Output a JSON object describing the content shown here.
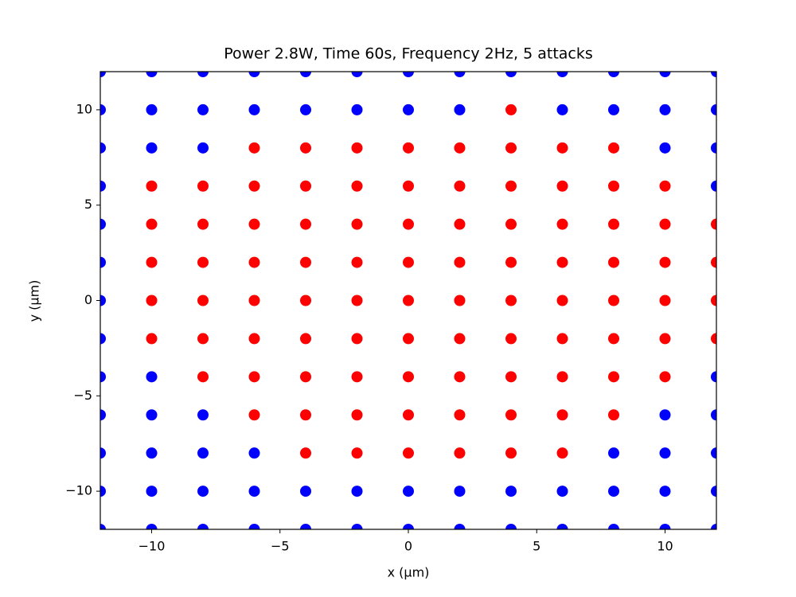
{
  "chart_data": {
    "type": "scatter",
    "title": "Power 2.8W, Time 60s, Frequency 2Hz, 5 attacks",
    "x_label": "x (µm)",
    "y_label": "y (µm)",
    "xlim": [
      -12,
      12
    ],
    "ylim": [
      -12,
      12
    ],
    "xticks": [
      {
        "value": -10,
        "label": "−10"
      },
      {
        "value": -5,
        "label": "−5"
      },
      0,
      5,
      10
    ],
    "yticks": [
      {
        "value": -10,
        "label": "−10"
      },
      {
        "value": -5,
        "label": "−5"
      },
      0,
      5,
      10
    ],
    "series": [
      {
        "color": "#ff0000",
        "x": [
          4,
          -6,
          -4,
          -2,
          0,
          2,
          4,
          6,
          8,
          -10,
          -8,
          -6,
          -4,
          -2,
          0,
          2,
          4,
          6,
          8,
          10,
          -10,
          -8,
          -6,
          -4,
          -2,
          0,
          2,
          4,
          6,
          8,
          10,
          12,
          -10,
          -8,
          -6,
          -4,
          -2,
          0,
          2,
          4,
          6,
          8,
          10,
          12,
          -10,
          -8,
          -6,
          -4,
          -2,
          0,
          2,
          4,
          6,
          8,
          10,
          12,
          -10,
          -8,
          -6,
          -4,
          -2,
          0,
          2,
          4,
          6,
          8,
          10,
          12,
          -8,
          -6,
          -4,
          -2,
          0,
          2,
          4,
          6,
          8,
          10,
          -6,
          -4,
          -2,
          0,
          2,
          4,
          6,
          8,
          -4,
          -2,
          0,
          2,
          4,
          6
        ],
        "y": [
          10,
          8,
          8,
          8,
          8,
          8,
          8,
          8,
          8,
          6,
          6,
          6,
          6,
          6,
          6,
          6,
          6,
          6,
          6,
          6,
          4,
          4,
          4,
          4,
          4,
          4,
          4,
          4,
          4,
          4,
          4,
          4,
          2,
          2,
          2,
          2,
          2,
          2,
          2,
          2,
          2,
          2,
          2,
          2,
          0,
          0,
          0,
          0,
          0,
          0,
          0,
          0,
          0,
          0,
          0,
          0,
          -2,
          -2,
          -2,
          -2,
          -2,
          -2,
          -2,
          -2,
          -2,
          -2,
          -2,
          -2,
          -4,
          -4,
          -4,
          -4,
          -4,
          -4,
          -4,
          -4,
          -4,
          -4,
          -6,
          -6,
          -6,
          -6,
          -6,
          -6,
          -6,
          -6,
          -8,
          -8,
          -8,
          -8,
          -8,
          -8
        ]
      },
      {
        "color": "#0000ff",
        "x": [
          -12,
          -10,
          -8,
          -6,
          -4,
          -2,
          0,
          2,
          4,
          6,
          8,
          10,
          12,
          -12,
          -10,
          -8,
          -6,
          -4,
          -2,
          0,
          2,
          6,
          8,
          10,
          12,
          -12,
          -10,
          -8,
          10,
          12,
          -12,
          12,
          -12,
          -12,
          -12,
          -12,
          -12,
          -10,
          12,
          -12,
          -10,
          -8,
          10,
          12,
          -12,
          -10,
          -8,
          -6,
          8,
          10,
          12,
          -12,
          -10,
          -8,
          -6,
          -4,
          -2,
          0,
          2,
          4,
          6,
          8,
          10,
          12,
          -12,
          -10,
          -8,
          -6,
          -4,
          -2,
          0,
          2,
          4,
          6,
          8,
          10,
          12
        ],
        "y": [
          12,
          12,
          12,
          12,
          12,
          12,
          12,
          12,
          12,
          12,
          12,
          12,
          12,
          10,
          10,
          10,
          10,
          10,
          10,
          10,
          10,
          10,
          10,
          10,
          10,
          8,
          8,
          8,
          8,
          8,
          6,
          6,
          4,
          2,
          0,
          -2,
          -4,
          -4,
          -4,
          -6,
          -6,
          -6,
          -6,
          -6,
          -8,
          -8,
          -8,
          -8,
          -8,
          -8,
          -8,
          -10,
          -10,
          -10,
          -10,
          -10,
          -10,
          -10,
          -10,
          -10,
          -10,
          -10,
          -10,
          -10,
          -12,
          -12,
          -12,
          -12,
          -12,
          -12,
          -12,
          -12,
          -12,
          -12,
          -12,
          -12,
          -12
        ]
      }
    ]
  }
}
